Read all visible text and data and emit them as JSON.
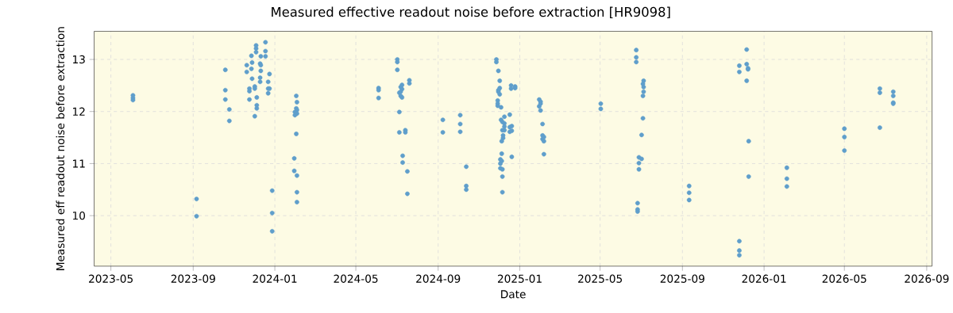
{
  "chart_data": {
    "type": "scatter",
    "title": "Measured effective readout noise before extraction [HR9098]",
    "xlabel": "Date",
    "ylabel": "Measured eff readout noise before extraction",
    "x": [
      "2023-06-03",
      "2023-06-03",
      "2023-06-03",
      "2023-09-06",
      "2023-09-06",
      "2023-10-19",
      "2023-10-19",
      "2023-10-19",
      "2023-10-25",
      "2023-10-25",
      "2023-11-20",
      "2023-11-20",
      "2023-11-24",
      "2023-11-24",
      "2023-11-24",
      "2023-11-27",
      "2023-11-27",
      "2023-11-28",
      "2023-11-28",
      "2023-12-02",
      "2023-12-02",
      "2023-12-02",
      "2023-12-04",
      "2023-12-04",
      "2023-12-04",
      "2023-12-05",
      "2023-12-05",
      "2023-12-05",
      "2023-12-10",
      "2023-12-10",
      "2023-12-10",
      "2023-12-11",
      "2023-12-11",
      "2023-12-11",
      "2023-12-18",
      "2023-12-18",
      "2023-12-18",
      "2023-12-22",
      "2023-12-22",
      "2023-12-22",
      "2023-12-24",
      "2023-12-24",
      "2023-12-28",
      "2023-12-28",
      "2023-12-28",
      "2024-01-30",
      "2024-01-30",
      "2024-01-31",
      "2024-01-31",
      "2024-02-02",
      "2024-02-02",
      "2024-02-02",
      "2024-02-03",
      "2024-02-03",
      "2024-02-03",
      "2024-02-03",
      "2024-02-03",
      "2024-02-03",
      "2024-06-04",
      "2024-06-04",
      "2024-06-04",
      "2024-07-02",
      "2024-07-02",
      "2024-07-02",
      "2024-07-05",
      "2024-07-05",
      "2024-07-05",
      "2024-07-07",
      "2024-07-07",
      "2024-07-07",
      "2024-07-09",
      "2024-07-09",
      "2024-07-09",
      "2024-07-10",
      "2024-07-10",
      "2024-07-14",
      "2024-07-14",
      "2024-07-17",
      "2024-07-17",
      "2024-07-20",
      "2024-07-20",
      "2024-09-08",
      "2024-09-08",
      "2024-10-04",
      "2024-10-04",
      "2024-10-04",
      "2024-10-13",
      "2024-10-13",
      "2024-10-13",
      "2024-11-27",
      "2024-11-27",
      "2024-11-29",
      "2024-11-29",
      "2024-11-29",
      "2024-11-30",
      "2024-11-30",
      "2024-11-30",
      "2024-12-02",
      "2024-12-02",
      "2024-12-02",
      "2024-12-03",
      "2024-12-03",
      "2024-12-03",
      "2024-12-04",
      "2024-12-04",
      "2024-12-05",
      "2024-12-05",
      "2024-12-05",
      "2024-12-06",
      "2024-12-06",
      "2024-12-06",
      "2024-12-06",
      "2024-12-06",
      "2024-12-07",
      "2024-12-07",
      "2024-12-09",
      "2024-12-09",
      "2024-12-09",
      "2024-12-09",
      "2024-12-17",
      "2024-12-17",
      "2024-12-17",
      "2024-12-19",
      "2024-12-19",
      "2024-12-20",
      "2024-12-20",
      "2024-12-20",
      "2024-12-25",
      "2024-12-25",
      "2025-01-30",
      "2025-01-30",
      "2025-02-01",
      "2025-02-01",
      "2025-02-01",
      "2025-02-04",
      "2025-02-04",
      "2025-02-04",
      "2025-02-06",
      "2025-02-06",
      "2025-02-06",
      "2025-05-02",
      "2025-05-02",
      "2025-06-24",
      "2025-06-24",
      "2025-06-24",
      "2025-06-26",
      "2025-06-26",
      "2025-06-26",
      "2025-06-28",
      "2025-06-28",
      "2025-06-28",
      "2025-07-02",
      "2025-07-02",
      "2025-07-04",
      "2025-07-04",
      "2025-07-04",
      "2025-07-05",
      "2025-07-05",
      "2025-07-05",
      "2025-09-11",
      "2025-09-11",
      "2025-09-11",
      "2025-11-25",
      "2025-11-25",
      "2025-11-25",
      "2025-11-25",
      "2025-11-25",
      "2025-12-06",
      "2025-12-06",
      "2025-12-06",
      "2025-12-08",
      "2025-12-08",
      "2025-12-09",
      "2025-12-09",
      "2026-02-04",
      "2026-02-04",
      "2026-02-04",
      "2026-05-01",
      "2026-05-01",
      "2026-05-01",
      "2026-06-23",
      "2026-06-23",
      "2026-06-23",
      "2026-07-13",
      "2026-07-13",
      "2026-07-13",
      "2026-07-13"
    ],
    "values": [
      12.31,
      12.26,
      12.22,
      10.32,
      9.99,
      12.8,
      12.41,
      12.23,
      12.04,
      11.82,
      12.89,
      12.76,
      12.44,
      12.39,
      12.23,
      13.07,
      12.82,
      12.94,
      12.63,
      12.48,
      12.44,
      11.91,
      13.27,
      13.21,
      13.14,
      12.27,
      12.12,
      12.06,
      12.92,
      12.65,
      12.57,
      13.06,
      12.89,
      12.78,
      13.33,
      13.16,
      13.06,
      12.57,
      12.44,
      12.35,
      12.72,
      12.44,
      10.48,
      10.05,
      9.7,
      11.1,
      10.86,
      11.99,
      11.93,
      12.3,
      12.06,
      11.57,
      12.18,
      12.03,
      11.96,
      10.77,
      10.45,
      10.26,
      12.45,
      12.41,
      12.26,
      13.0,
      12.95,
      12.8,
      12.36,
      11.99,
      11.6,
      12.47,
      12.38,
      12.3,
      12.51,
      12.43,
      12.27,
      11.15,
      11.02,
      11.64,
      11.6,
      10.85,
      10.42,
      12.6,
      12.54,
      11.84,
      11.6,
      11.93,
      11.76,
      11.61,
      10.94,
      10.57,
      10.5,
      13.0,
      12.95,
      12.21,
      12.15,
      12.11,
      12.78,
      12.41,
      12.38,
      12.59,
      12.45,
      12.33,
      11.08,
      11.0,
      10.91,
      12.08,
      11.84,
      11.43,
      11.19,
      11.05,
      11.8,
      11.64,
      10.89,
      10.75,
      10.45,
      11.54,
      11.49,
      11.9,
      11.77,
      11.71,
      11.64,
      11.94,
      11.7,
      11.61,
      12.5,
      12.44,
      11.72,
      11.63,
      11.13,
      12.48,
      12.45,
      12.23,
      12.1,
      12.19,
      12.15,
      12.02,
      11.76,
      11.54,
      11.47,
      11.51,
      11.43,
      11.18,
      12.15,
      12.05,
      13.18,
      13.04,
      12.95,
      10.24,
      10.12,
      10.08,
      11.12,
      11.01,
      10.89,
      11.55,
      11.09,
      12.53,
      12.3,
      11.87,
      12.59,
      12.47,
      12.38,
      10.57,
      10.44,
      10.3,
      12.88,
      12.76,
      9.51,
      9.33,
      9.24,
      13.19,
      12.91,
      12.59,
      12.83,
      12.81,
      11.43,
      10.75,
      10.92,
      10.71,
      10.56,
      11.67,
      11.51,
      11.25,
      12.44,
      12.36,
      11.69,
      12.38,
      12.3,
      12.17,
      12.15
    ],
    "color": "#5f9ecb",
    "grid": true,
    "xlim": [
      "2023-04-06",
      "2026-09-09"
    ],
    "xticks": [
      "2023-05",
      "2023-09",
      "2024-01",
      "2024-05",
      "2024-09",
      "2025-01",
      "2025-05",
      "2025-09",
      "2026-01",
      "2026-05",
      "2026-09"
    ],
    "ylim": [
      9.03,
      13.54
    ],
    "yticks": [
      10,
      11,
      12,
      13
    ]
  }
}
